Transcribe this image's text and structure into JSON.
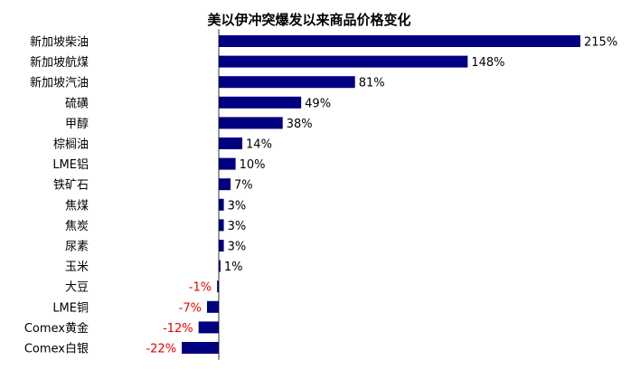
{
  "chart_data": {
    "type": "bar",
    "orientation": "horizontal",
    "title": "美以伊冲突爆发以来商品价格变化",
    "xlabel": "",
    "ylabel": "",
    "xlim": [
      -25,
      220
    ],
    "grid": false,
    "legend": "none",
    "value_suffix": "%",
    "categories": [
      "新加坡柴油",
      "新加坡航煤",
      "新加坡汽油",
      "硫磺",
      "甲醇",
      "棕榈油",
      "LME铝",
      "铁矿石",
      "焦煤",
      "焦炭",
      "尿素",
      "玉米",
      "大豆",
      "LME铜",
      "Comex黄金",
      "Comex白银"
    ],
    "values": [
      215,
      148,
      81,
      49,
      38,
      14,
      10,
      7,
      3,
      3,
      3,
      1,
      -1,
      -7,
      -12,
      -22
    ],
    "data_labels": [
      "215%",
      "148%",
      "81%",
      "49%",
      "38%",
      "14%",
      "10%",
      "7%",
      "3%",
      "3%",
      "3%",
      "1%",
      "-1%",
      "-7%",
      "-12%",
      "-22%"
    ]
  },
  "colors": {
    "bar": "#000080",
    "positive_label": "#000000",
    "negative_label": "#e60000",
    "axis": "#000000"
  }
}
